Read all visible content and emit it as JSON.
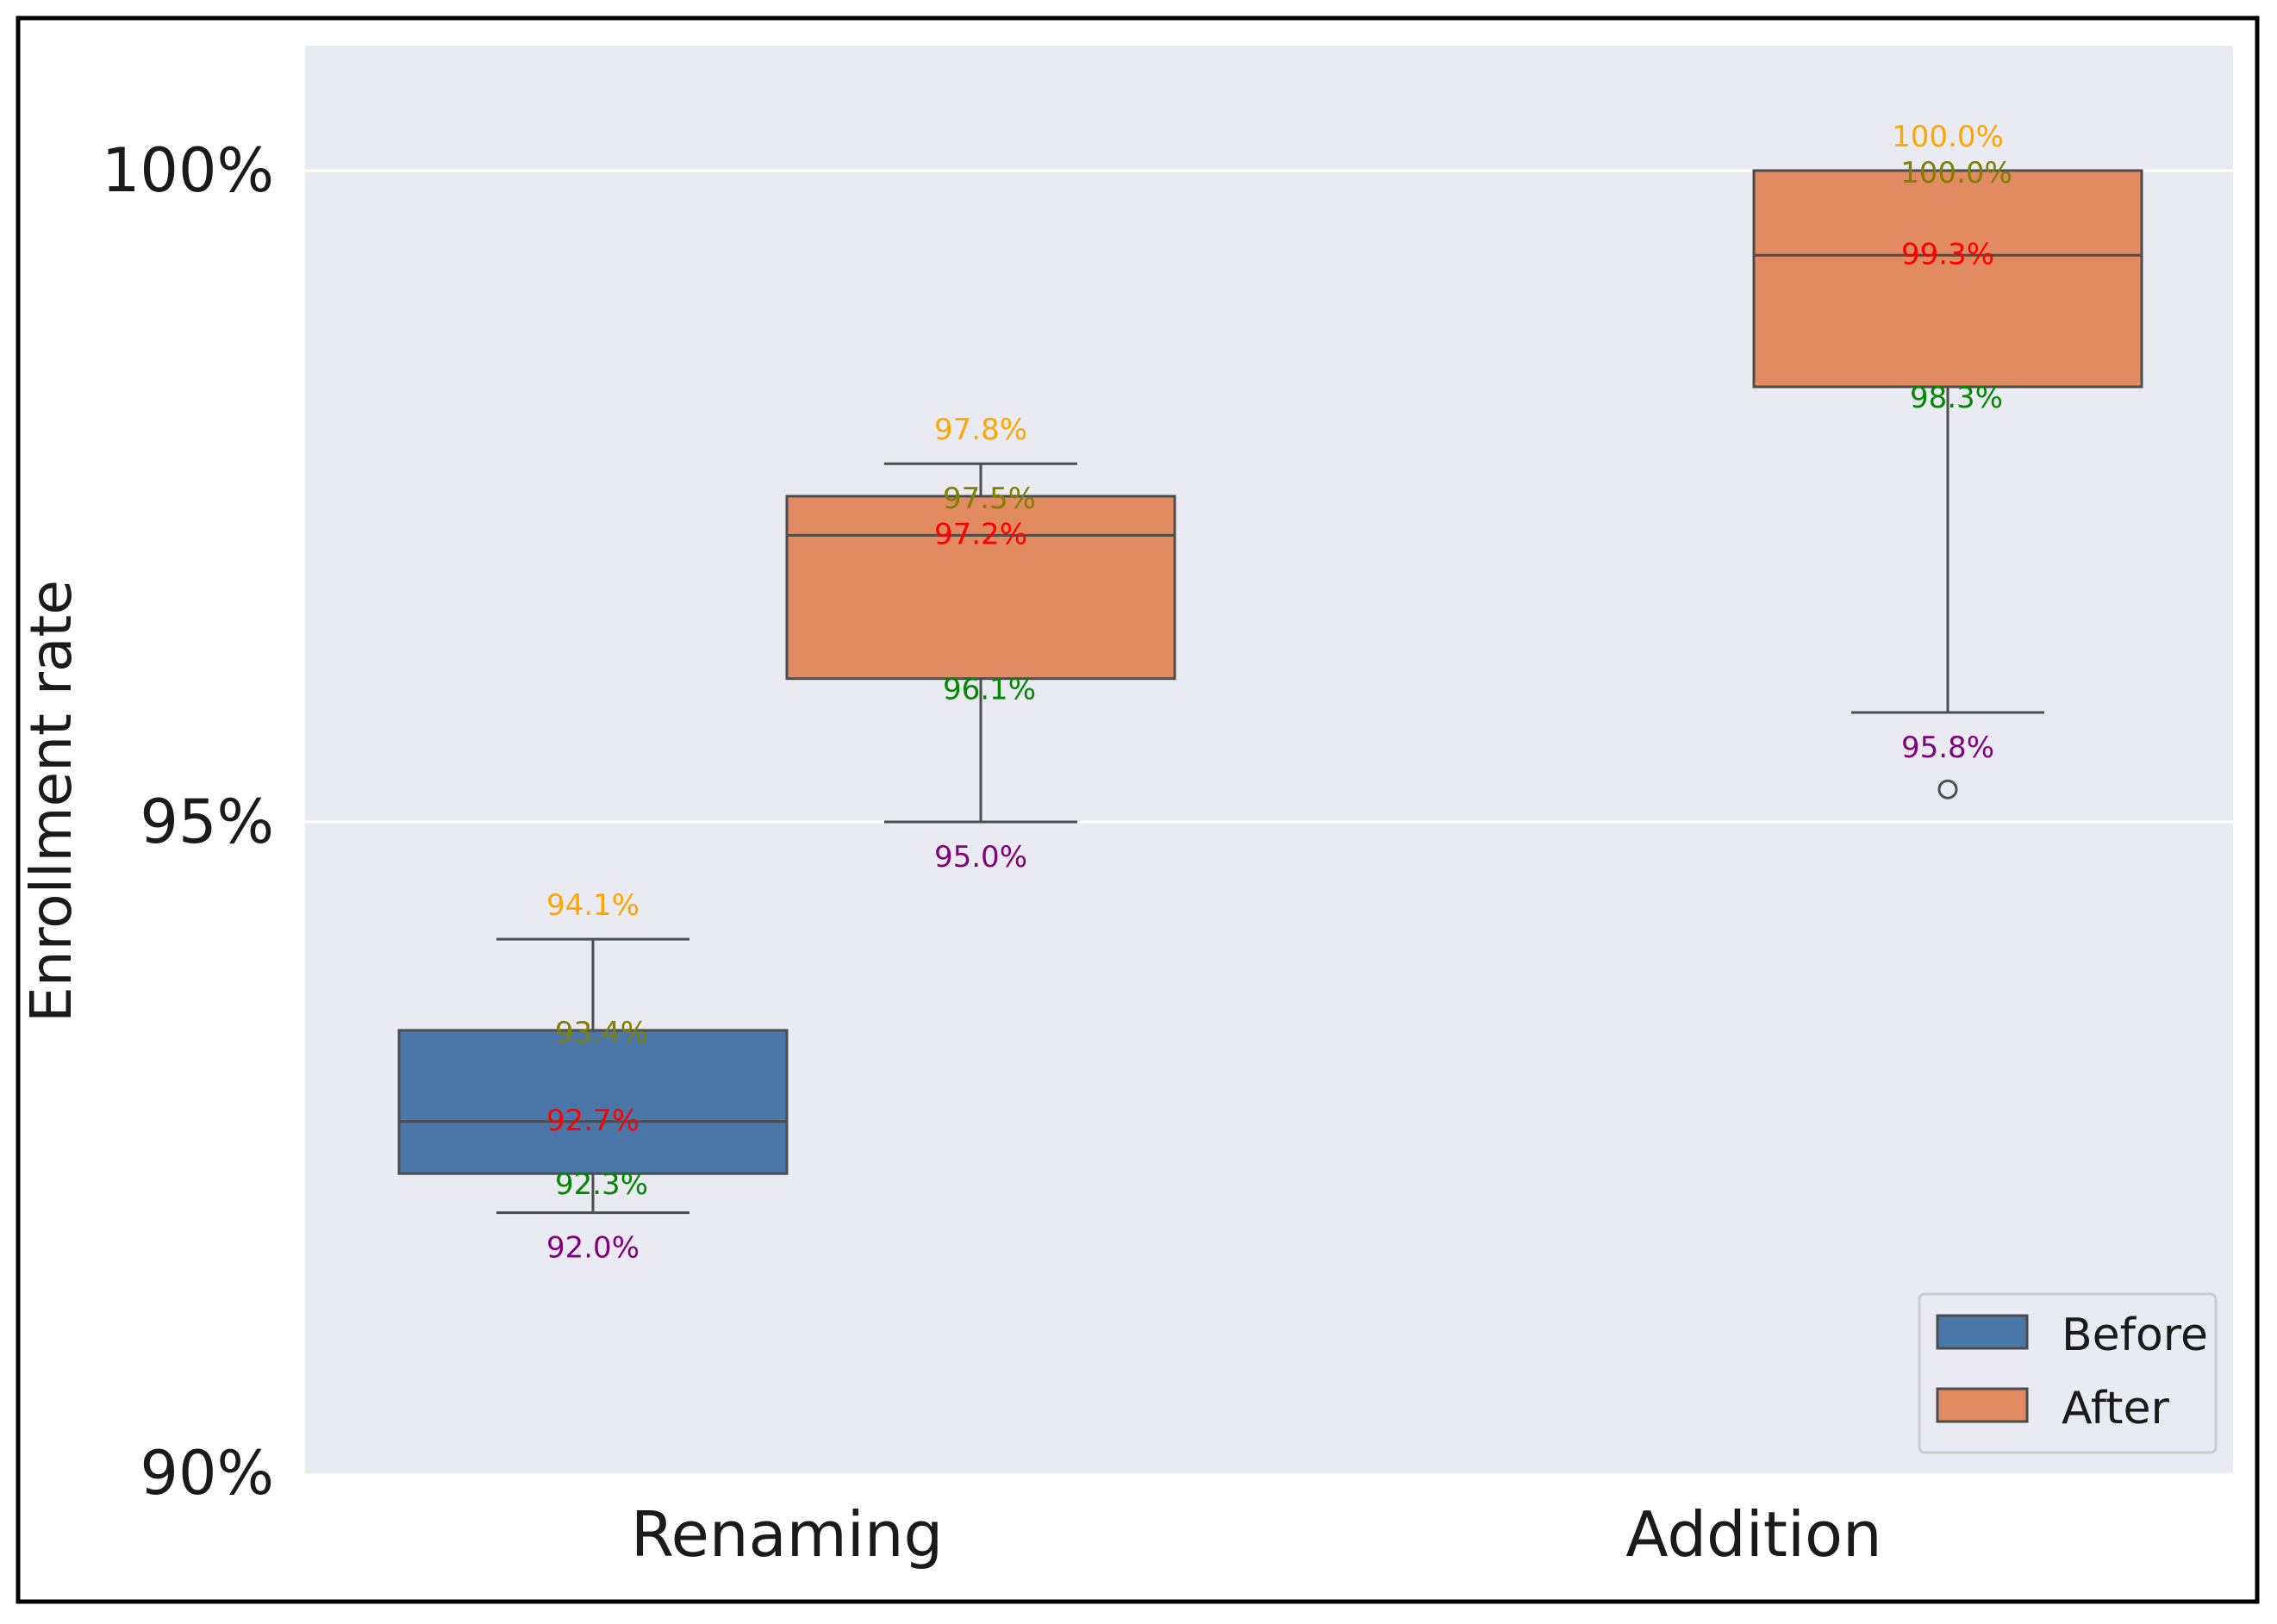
{
  "chart_data": {
    "type": "box",
    "title": "",
    "xlabel": "",
    "ylabel": "Enrollment rate",
    "ylim": [
      90,
      101
    ],
    "yticks": [
      90,
      95,
      100
    ],
    "ytick_labels": [
      "90%",
      "95%",
      "100%"
    ],
    "categories": [
      "Renaming",
      "Addition"
    ],
    "legend": {
      "placement": "bottom-right",
      "entries": [
        "Before",
        "After"
      ]
    },
    "colors": {
      "Before": "#4a76a8",
      "After": "#e28a62",
      "background": "#eaeaf2",
      "grid": "#ffffff",
      "box_line": "#4d4d4d",
      "label_max": "#ffa500",
      "label_q3": "#808000",
      "label_median": "#ff0000",
      "label_q1": "#008800",
      "label_min": "#800080"
    },
    "boxes": [
      {
        "category": "Renaming",
        "series": "Before",
        "whisker_low": 92.0,
        "q1": 92.3,
        "median": 92.7,
        "q3": 93.4,
        "whisker_high": 94.1,
        "outliers": [],
        "labels": {
          "max": "94.1%",
          "q3": "93.4%",
          "median": "92.7%",
          "q1": "92.3%",
          "min": "92.0%"
        }
      },
      {
        "category": "Renaming",
        "series": "After",
        "whisker_low": 95.0,
        "q1": 96.1,
        "median": 97.2,
        "q3": 97.5,
        "whisker_high": 97.75,
        "outliers": [],
        "labels": {
          "max": "97.8%",
          "q3": "97.5%",
          "median": "97.2%",
          "q1": "96.1%",
          "min": "95.0%"
        }
      },
      {
        "category": "Addition",
        "series": "After",
        "whisker_low": 95.84,
        "q1": 98.34,
        "median": 99.35,
        "q3": 100.0,
        "whisker_high": 100.0,
        "outliers": [
          95.25
        ],
        "labels": {
          "max": "100.0%",
          "q3": "100.0%",
          "median": "99.3%",
          "q1": "98.3%",
          "min": "95.8%"
        }
      }
    ]
  }
}
